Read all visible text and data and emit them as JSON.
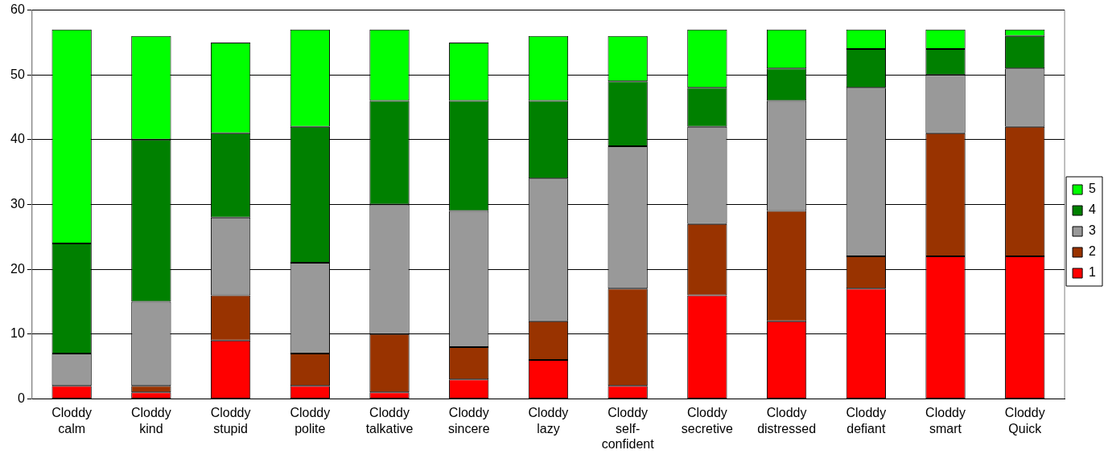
{
  "chart_data": {
    "type": "bar",
    "stacked": true,
    "categories": [
      "Cloddy calm",
      "Cloddy kind",
      "Cloddy stupid",
      "Cloddy polite",
      "Cloddy talkative",
      "Cloddy sincere",
      "Cloddy lazy",
      "Cloddy self-confident",
      "Cloddy secretive",
      "Cloddy distressed",
      "Cloddy defiant",
      "Cloddy smart",
      "Cloddy Quick"
    ],
    "series": [
      {
        "name": "1",
        "color": "#ff0000",
        "values": [
          2,
          1,
          9,
          2,
          1,
          3,
          6,
          2,
          16,
          12,
          17,
          22,
          22
        ]
      },
      {
        "name": "2",
        "color": "#993300",
        "values": [
          0,
          1,
          7,
          5,
          9,
          5,
          6,
          15,
          11,
          17,
          5,
          19,
          20
        ]
      },
      {
        "name": "3",
        "color": "#999999",
        "values": [
          5,
          13,
          12,
          14,
          20,
          21,
          22,
          22,
          15,
          17,
          26,
          9,
          9
        ]
      },
      {
        "name": "4",
        "color": "#008000",
        "values": [
          17,
          25,
          13,
          21,
          16,
          17,
          12,
          10,
          6,
          5,
          6,
          4,
          5
        ]
      },
      {
        "name": "5",
        "color": "#00ff00",
        "values": [
          33,
          16,
          14,
          15,
          11,
          9,
          10,
          7,
          9,
          6,
          3,
          3,
          1
        ]
      }
    ],
    "ylim": [
      0,
      60
    ],
    "yticks": [
      0,
      10,
      20,
      30,
      40,
      50,
      60
    ],
    "grid": "y",
    "legend": "right"
  }
}
